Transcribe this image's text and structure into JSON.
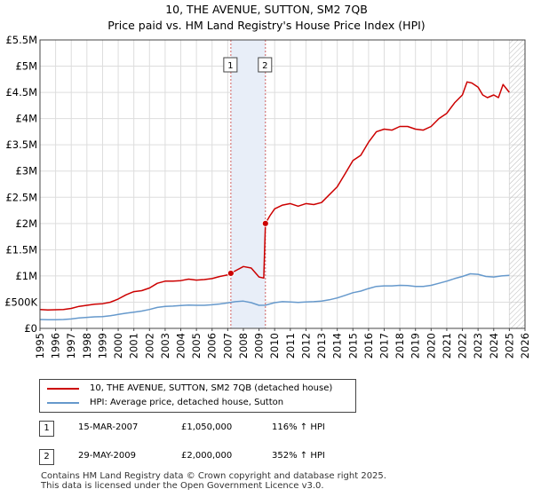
{
  "header": {
    "title": "10, THE AVENUE, SUTTON, SM2 7QB",
    "subtitle": "Price paid vs. HM Land Registry's House Price Index (HPI)"
  },
  "colors": {
    "price_line": "#cc0000",
    "hpi_line": "#6699cc",
    "grid": "#dddddd",
    "shade": "#e8eef8",
    "marker_line": "#d06060"
  },
  "chart_data": {
    "type": "line",
    "title": "10, THE AVENUE, SUTTON, SM2 7QB",
    "xlim": [
      1995,
      2026
    ],
    "ylim": [
      0,
      5500000
    ],
    "x_ticks": [
      "1995",
      "1996",
      "1997",
      "1998",
      "1999",
      "2000",
      "2001",
      "2002",
      "2003",
      "2004",
      "2005",
      "2006",
      "2007",
      "2008",
      "2009",
      "2010",
      "2011",
      "2012",
      "2013",
      "2014",
      "2015",
      "2016",
      "2017",
      "2018",
      "2019",
      "2020",
      "2021",
      "2022",
      "2023",
      "2024",
      "2025",
      "2026"
    ],
    "y_ticks": [
      {
        "value": 0,
        "label": "£0"
      },
      {
        "value": 500000,
        "label": "£500K"
      },
      {
        "value": 1000000,
        "label": "£1M"
      },
      {
        "value": 1500000,
        "label": "£1.5M"
      },
      {
        "value": 2000000,
        "label": "£2M"
      },
      {
        "value": 2500000,
        "label": "£2.5M"
      },
      {
        "value": 3000000,
        "label": "£3M"
      },
      {
        "value": 3500000,
        "label": "£3.5M"
      },
      {
        "value": 4000000,
        "label": "£4M"
      },
      {
        "value": 4500000,
        "label": "£4.5M"
      },
      {
        "value": 5000000,
        "label": "£5M"
      },
      {
        "value": 5500000,
        "label": "£5.5M"
      }
    ],
    "grid": true,
    "shaded_region": [
      2007.2,
      2009.41
    ],
    "hatched_from": 2025.0,
    "series": [
      {
        "name": "10, THE AVENUE, SUTTON, SM2 7QB (detached house)",
        "color": "#cc0000",
        "points": [
          [
            1995.0,
            360000
          ],
          [
            1995.5,
            350000
          ],
          [
            1996.0,
            355000
          ],
          [
            1996.5,
            360000
          ],
          [
            1997.0,
            380000
          ],
          [
            1997.5,
            420000
          ],
          [
            1998.0,
            440000
          ],
          [
            1998.5,
            460000
          ],
          [
            1999.0,
            470000
          ],
          [
            1999.5,
            500000
          ],
          [
            2000.0,
            560000
          ],
          [
            2000.5,
            640000
          ],
          [
            2001.0,
            700000
          ],
          [
            2001.5,
            720000
          ],
          [
            2002.0,
            770000
          ],
          [
            2002.5,
            860000
          ],
          [
            2003.0,
            900000
          ],
          [
            2003.5,
            900000
          ],
          [
            2004.0,
            910000
          ],
          [
            2004.5,
            940000
          ],
          [
            2005.0,
            920000
          ],
          [
            2005.5,
            930000
          ],
          [
            2006.0,
            950000
          ],
          [
            2006.5,
            990000
          ],
          [
            2007.0,
            1020000
          ],
          [
            2007.2,
            1050000
          ],
          [
            2007.5,
            1100000
          ],
          [
            2008.0,
            1180000
          ],
          [
            2008.5,
            1150000
          ],
          [
            2009.0,
            980000
          ],
          [
            2009.3,
            960000
          ],
          [
            2009.41,
            2000000
          ],
          [
            2009.7,
            2150000
          ],
          [
            2010.0,
            2280000
          ],
          [
            2010.5,
            2350000
          ],
          [
            2011.0,
            2380000
          ],
          [
            2011.5,
            2330000
          ],
          [
            2012.0,
            2380000
          ],
          [
            2012.5,
            2360000
          ],
          [
            2013.0,
            2400000
          ],
          [
            2013.5,
            2550000
          ],
          [
            2014.0,
            2700000
          ],
          [
            2014.5,
            2950000
          ],
          [
            2015.0,
            3200000
          ],
          [
            2015.5,
            3300000
          ],
          [
            2016.0,
            3550000
          ],
          [
            2016.5,
            3750000
          ],
          [
            2017.0,
            3800000
          ],
          [
            2017.5,
            3780000
          ],
          [
            2018.0,
            3850000
          ],
          [
            2018.5,
            3850000
          ],
          [
            2019.0,
            3800000
          ],
          [
            2019.5,
            3780000
          ],
          [
            2020.0,
            3850000
          ],
          [
            2020.5,
            4000000
          ],
          [
            2021.0,
            4100000
          ],
          [
            2021.5,
            4300000
          ],
          [
            2022.0,
            4450000
          ],
          [
            2022.3,
            4700000
          ],
          [
            2022.6,
            4680000
          ],
          [
            2023.0,
            4600000
          ],
          [
            2023.3,
            4450000
          ],
          [
            2023.6,
            4400000
          ],
          [
            2024.0,
            4450000
          ],
          [
            2024.3,
            4400000
          ],
          [
            2024.6,
            4650000
          ],
          [
            2025.0,
            4500000
          ]
        ]
      },
      {
        "name": "HPI: Average price, detached house, Sutton",
        "color": "#6699cc",
        "points": [
          [
            1995.0,
            170000
          ],
          [
            1995.5,
            165000
          ],
          [
            1996.0,
            165000
          ],
          [
            1996.5,
            170000
          ],
          [
            1997.0,
            180000
          ],
          [
            1997.5,
            200000
          ],
          [
            1998.0,
            210000
          ],
          [
            1998.5,
            220000
          ],
          [
            1999.0,
            225000
          ],
          [
            1999.5,
            240000
          ],
          [
            2000.0,
            265000
          ],
          [
            2000.5,
            290000
          ],
          [
            2001.0,
            310000
          ],
          [
            2001.5,
            330000
          ],
          [
            2002.0,
            360000
          ],
          [
            2002.5,
            400000
          ],
          [
            2003.0,
            420000
          ],
          [
            2003.5,
            425000
          ],
          [
            2004.0,
            435000
          ],
          [
            2004.5,
            445000
          ],
          [
            2005.0,
            440000
          ],
          [
            2005.5,
            440000
          ],
          [
            2006.0,
            450000
          ],
          [
            2006.5,
            465000
          ],
          [
            2007.0,
            485000
          ],
          [
            2007.5,
            510000
          ],
          [
            2008.0,
            520000
          ],
          [
            2008.5,
            490000
          ],
          [
            2009.0,
            440000
          ],
          [
            2009.41,
            442000
          ],
          [
            2010.0,
            490000
          ],
          [
            2010.5,
            510000
          ],
          [
            2011.0,
            505000
          ],
          [
            2011.5,
            495000
          ],
          [
            2012.0,
            505000
          ],
          [
            2012.5,
            510000
          ],
          [
            2013.0,
            520000
          ],
          [
            2013.5,
            545000
          ],
          [
            2014.0,
            580000
          ],
          [
            2014.5,
            630000
          ],
          [
            2015.0,
            680000
          ],
          [
            2015.5,
            710000
          ],
          [
            2016.0,
            760000
          ],
          [
            2016.5,
            800000
          ],
          [
            2017.0,
            810000
          ],
          [
            2017.5,
            810000
          ],
          [
            2018.0,
            820000
          ],
          [
            2018.5,
            815000
          ],
          [
            2019.0,
            800000
          ],
          [
            2019.5,
            800000
          ],
          [
            2020.0,
            820000
          ],
          [
            2020.5,
            860000
          ],
          [
            2021.0,
            900000
          ],
          [
            2021.5,
            950000
          ],
          [
            2022.0,
            990000
          ],
          [
            2022.5,
            1040000
          ],
          [
            2023.0,
            1030000
          ],
          [
            2023.5,
            990000
          ],
          [
            2024.0,
            980000
          ],
          [
            2024.5,
            1000000
          ],
          [
            2025.0,
            1010000
          ]
        ]
      }
    ],
    "sales": [
      {
        "id": "1",
        "x": 2007.2,
        "value": 1050000
      },
      {
        "id": "2",
        "x": 2009.41,
        "value": 2000000
      }
    ]
  },
  "legend": {
    "price_label": "10, THE AVENUE, SUTTON, SM2 7QB (detached house)",
    "hpi_label": "HPI: Average price, detached house, Sutton"
  },
  "transactions": [
    {
      "num": "1",
      "date": "15-MAR-2007",
      "price": "£1,050,000",
      "hpi": "116% ↑ HPI"
    },
    {
      "num": "2",
      "date": "29-MAY-2009",
      "price": "£2,000,000",
      "hpi": "352% ↑ HPI"
    }
  ],
  "footer": {
    "line1": "Contains HM Land Registry data © Crown copyright and database right 2025.",
    "line2": "This data is licensed under the Open Government Licence v3.0."
  }
}
